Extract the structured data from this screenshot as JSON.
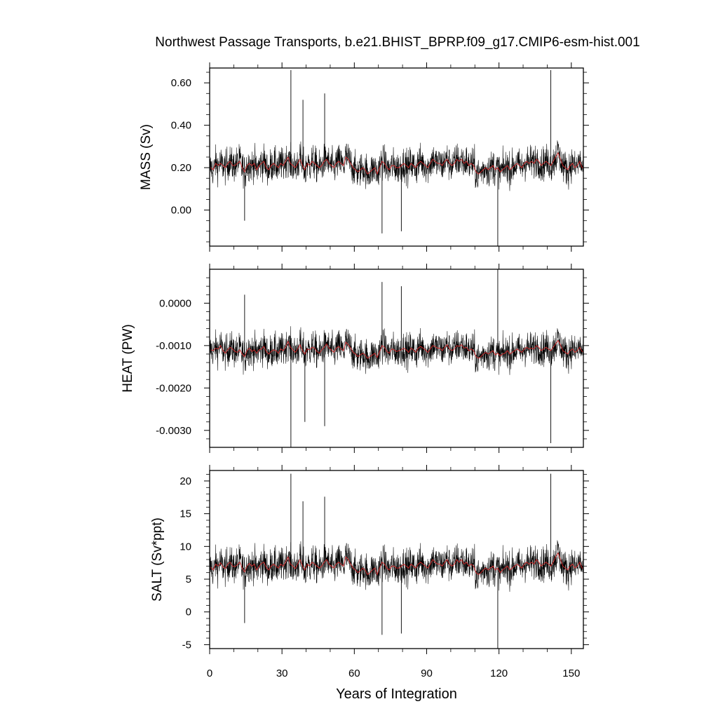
{
  "title": "Northwest Passage Transports, b.e21.BHIST_BPRP.f09_g17.CMIP6-esm-hist.001",
  "chart_data": [
    {
      "type": "line",
      "ylabel": "MASS (Sv)",
      "xlim": [
        0,
        155
      ],
      "ylim": [
        -0.17,
        0.67
      ],
      "yticks": [
        0.0,
        0.2,
        0.4,
        0.6
      ],
      "ytick_labels": [
        "0.00",
        "0.20",
        "0.40",
        "0.60"
      ],
      "yminor": [
        -0.15,
        -0.1,
        -0.05,
        0.05,
        0.1,
        0.15,
        0.25,
        0.3,
        0.35,
        0.45,
        0.5,
        0.55,
        0.65
      ],
      "xticks": [
        0,
        30,
        60,
        90,
        120,
        150
      ],
      "xminor_step": 10,
      "monthly_mean": 0.21,
      "monthly_noise": 0.075,
      "series": [
        {
          "color": "#000000",
          "values_note": "monthly"
        },
        {
          "color": "#d62728",
          "values": [
            0.2,
            0.19,
            0.22,
            0.21,
            0.22,
            0.21,
            0.2,
            0.22,
            0.23,
            0.21,
            0.21,
            0.22,
            0.23,
            0.2,
            0.18,
            0.21,
            0.22,
            0.21,
            0.22,
            0.19,
            0.21,
            0.22,
            0.23,
            0.2,
            0.19,
            0.21,
            0.22,
            0.21,
            0.2,
            0.22,
            0.21,
            0.23,
            0.25,
            0.22,
            0.21,
            0.2,
            0.22,
            0.24,
            0.21,
            0.19,
            0.22,
            0.21,
            0.23,
            0.22,
            0.21,
            0.2,
            0.21,
            0.23,
            0.24,
            0.22,
            0.21,
            0.2,
            0.22,
            0.23,
            0.22,
            0.21,
            0.25,
            0.24,
            0.22,
            0.2,
            0.19,
            0.18,
            0.19,
            0.2,
            0.19,
            0.17,
            0.18,
            0.19,
            0.2,
            0.17,
            0.2,
            0.23,
            0.22,
            0.2,
            0.19,
            0.21,
            0.21,
            0.2,
            0.2,
            0.21,
            0.22,
            0.21,
            0.2,
            0.22,
            0.21,
            0.2,
            0.22,
            0.23,
            0.22,
            0.21,
            0.2,
            0.22,
            0.24,
            0.23,
            0.22,
            0.22,
            0.21,
            0.23,
            0.24,
            0.22,
            0.21,
            0.22,
            0.24,
            0.23,
            0.24,
            0.22,
            0.23,
            0.21,
            0.22,
            0.21,
            0.18,
            0.17,
            0.18,
            0.19,
            0.2,
            0.19,
            0.2,
            0.21,
            0.19,
            0.2,
            0.18,
            0.19,
            0.2,
            0.21,
            0.19,
            0.2,
            0.21,
            0.22,
            0.21,
            0.2,
            0.22,
            0.23,
            0.22,
            0.23,
            0.22,
            0.24,
            0.23,
            0.21,
            0.22,
            0.23,
            0.22,
            0.21,
            0.23,
            0.25,
            0.27,
            0.24,
            0.21,
            0.2,
            0.19,
            0.21,
            0.22,
            0.2,
            0.21,
            0.23,
            0.2,
            0.2
          ]
        }
      ],
      "spikes": [
        {
          "x": 33.7,
          "v": 0.66
        },
        {
          "x": 38.7,
          "v": 0.52
        },
        {
          "x": 47.7,
          "v": 0.55
        },
        {
          "x": 141.5,
          "v": 0.66
        },
        {
          "x": 119.5,
          "v": -0.17
        },
        {
          "x": 71.5,
          "v": -0.11
        },
        {
          "x": 79.5,
          "v": -0.1
        },
        {
          "x": 14.5,
          "v": -0.05
        }
      ]
    },
    {
      "type": "line",
      "ylabel": "HEAT (PW)",
      "xlim": [
        0,
        155
      ],
      "ylim": [
        -0.0034,
        0.0008
      ],
      "yticks": [
        -0.003,
        -0.002,
        -0.001,
        0.0
      ],
      "ytick_labels": [
        "-0.0030",
        "-0.0020",
        "-0.0010",
        "0.0000"
      ],
      "yminor": [
        -0.0032,
        -0.0028,
        -0.0026,
        -0.0024,
        -0.0022,
        -0.0018,
        -0.0016,
        -0.0014,
        -0.0012,
        -0.0008,
        -0.0006,
        -0.0004,
        -0.0002,
        0.0002,
        0.0004,
        0.0006
      ],
      "xticks": [
        0,
        30,
        60,
        90,
        120,
        150
      ],
      "xminor_step": 10,
      "monthly_mean": -0.00112,
      "monthly_noise": 0.00037,
      "series": [
        {
          "color": "#000000",
          "values_note": "monthly"
        },
        {
          "color": "#d62728",
          "values": [
            -0.0011,
            -0.00112,
            -0.00106,
            -0.00108,
            -0.001,
            -0.00112,
            -0.00118,
            -0.0011,
            -0.00104,
            -0.00108,
            -0.00114,
            -0.00116,
            -0.0011,
            -0.0012,
            -0.00126,
            -0.00112,
            -0.00106,
            -0.00114,
            -0.0011,
            -0.00118,
            -0.0011,
            -0.00108,
            -0.00102,
            -0.00114,
            -0.0012,
            -0.00114,
            -0.0011,
            -0.00112,
            -0.00118,
            -0.00108,
            -0.00112,
            -0.00104,
            -0.0009,
            -0.00104,
            -0.0011,
            -0.00116,
            -0.00108,
            -0.00098,
            -0.00112,
            -0.0012,
            -0.00108,
            -0.0011,
            -0.00104,
            -0.00106,
            -0.00114,
            -0.00118,
            -0.0011,
            -0.00104,
            -0.00096,
            -0.00106,
            -0.0011,
            -0.00116,
            -0.00106,
            -0.00102,
            -0.00108,
            -0.00112,
            -0.00092,
            -0.00098,
            -0.00106,
            -0.00116,
            -0.0012,
            -0.00126,
            -0.00122,
            -0.00118,
            -0.00122,
            -0.0013,
            -0.00126,
            -0.00122,
            -0.00118,
            -0.00128,
            -0.00114,
            -0.001,
            -0.00104,
            -0.00114,
            -0.00118,
            -0.00108,
            -0.0011,
            -0.00114,
            -0.00112,
            -0.0011,
            -0.00106,
            -0.0011,
            -0.00116,
            -0.00106,
            -0.0011,
            -0.00116,
            -0.00106,
            -0.00102,
            -0.00106,
            -0.0011,
            -0.00116,
            -0.00108,
            -0.001,
            -0.00102,
            -0.00106,
            -0.00106,
            -0.00112,
            -0.00104,
            -0.00098,
            -0.00108,
            -0.00112,
            -0.00108,
            -0.001,
            -0.00102,
            -0.00098,
            -0.00106,
            -0.00104,
            -0.00112,
            -0.00108,
            -0.00112,
            -0.00126,
            -0.0013,
            -0.00126,
            -0.0012,
            -0.00116,
            -0.0012,
            -0.00116,
            -0.00112,
            -0.00122,
            -0.00118,
            -0.00124,
            -0.0012,
            -0.00118,
            -0.00112,
            -0.0012,
            -0.00116,
            -0.00112,
            -0.00108,
            -0.00112,
            -0.00116,
            -0.00108,
            -0.00104,
            -0.00108,
            -0.00106,
            -0.00108,
            -0.001,
            -0.00104,
            -0.00112,
            -0.00108,
            -0.00104,
            -0.00108,
            -0.00112,
            -0.00104,
            -0.00096,
            -0.00088,
            -0.00098,
            -0.00112,
            -0.00116,
            -0.0012,
            -0.00112,
            -0.00108,
            -0.00116,
            -0.00112,
            -0.00104,
            -0.00114,
            -0.00114
          ]
        }
      ],
      "spikes": [
        {
          "x": 33.7,
          "v": -0.0034
        },
        {
          "x": 39.5,
          "v": -0.0028
        },
        {
          "x": 47.7,
          "v": -0.0029
        },
        {
          "x": 141.5,
          "v": -0.0033
        },
        {
          "x": 119.5,
          "v": 0.0008
        },
        {
          "x": 71.5,
          "v": 0.0005
        },
        {
          "x": 79.5,
          "v": 0.0004
        },
        {
          "x": 14.5,
          "v": 0.0002
        }
      ]
    },
    {
      "type": "line",
      "ylabel": "SALT (Sv*ppt)",
      "xlabel": "Years of Integration",
      "xlim": [
        0,
        155
      ],
      "ylim": [
        -5.6,
        21.6
      ],
      "yticks": [
        -5,
        0,
        5,
        10,
        15,
        20
      ],
      "ytick_labels": [
        "-5",
        "0",
        "5",
        "10",
        "15",
        "20"
      ],
      "yminor": [
        -4,
        -3,
        -2,
        -1,
        1,
        2,
        3,
        4,
        6,
        7,
        8,
        9,
        11,
        12,
        13,
        14,
        16,
        17,
        18,
        19,
        21
      ],
      "xticks": [
        0,
        30,
        60,
        90,
        120,
        150
      ],
      "xtick_labels": [
        "0",
        "30",
        "60",
        "90",
        "120",
        "150"
      ],
      "xminor_step": 10,
      "monthly_mean": 7.0,
      "monthly_noise": 2.5,
      "series": [
        {
          "color": "#000000",
          "values_note": "monthly"
        },
        {
          "color": "#d62728",
          "values": [
            6.8,
            6.4,
            7.3,
            7.0,
            7.5,
            6.9,
            6.6,
            7.3,
            7.6,
            7.0,
            6.9,
            7.2,
            7.6,
            6.7,
            6.1,
            7.0,
            7.4,
            7.0,
            7.3,
            6.4,
            7.0,
            7.4,
            7.6,
            6.8,
            6.4,
            7.0,
            7.3,
            7.0,
            6.7,
            7.3,
            7.0,
            7.6,
            8.4,
            7.3,
            7.0,
            6.6,
            7.3,
            8.0,
            7.0,
            6.4,
            7.3,
            7.0,
            7.6,
            7.3,
            7.0,
            6.7,
            7.0,
            7.6,
            8.0,
            7.3,
            7.0,
            6.7,
            7.3,
            7.6,
            7.3,
            7.0,
            8.4,
            8.0,
            7.3,
            6.7,
            6.4,
            6.0,
            6.3,
            6.7,
            6.4,
            5.7,
            6.0,
            6.4,
            6.7,
            5.7,
            6.7,
            7.6,
            7.3,
            6.7,
            6.4,
            7.0,
            7.0,
            6.7,
            6.7,
            7.0,
            7.3,
            7.0,
            6.7,
            7.3,
            7.0,
            6.7,
            7.3,
            7.6,
            7.3,
            7.0,
            6.7,
            7.3,
            8.0,
            7.6,
            7.3,
            7.3,
            7.0,
            7.6,
            8.0,
            7.3,
            7.0,
            7.3,
            8.0,
            7.6,
            8.0,
            7.3,
            7.6,
            7.0,
            7.3,
            7.0,
            6.0,
            5.7,
            6.0,
            6.4,
            6.7,
            6.4,
            6.7,
            7.0,
            6.4,
            6.7,
            6.0,
            6.4,
            6.7,
            7.0,
            6.4,
            6.7,
            7.0,
            7.3,
            7.0,
            6.7,
            7.3,
            7.6,
            7.3,
            7.6,
            7.3,
            8.0,
            7.6,
            7.0,
            7.3,
            7.6,
            7.3,
            7.0,
            7.6,
            8.4,
            9.0,
            8.0,
            7.0,
            6.7,
            6.4,
            7.0,
            7.3,
            6.7,
            7.0,
            7.6,
            6.7,
            6.7
          ]
        }
      ],
      "spikes": [
        {
          "x": 33.7,
          "v": 21.1
        },
        {
          "x": 38.7,
          "v": 16.9
        },
        {
          "x": 47.7,
          "v": 17.6
        },
        {
          "x": 141.5,
          "v": 21.1
        },
        {
          "x": 119.5,
          "v": -5.6
        },
        {
          "x": 71.5,
          "v": -3.5
        },
        {
          "x": 79.5,
          "v": -3.3
        },
        {
          "x": 14.5,
          "v": -1.7
        }
      ]
    }
  ]
}
